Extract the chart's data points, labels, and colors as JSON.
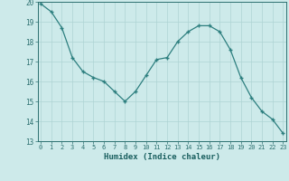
{
  "x": [
    0,
    1,
    2,
    3,
    4,
    5,
    6,
    7,
    8,
    9,
    10,
    11,
    12,
    13,
    14,
    15,
    16,
    17,
    18,
    19,
    20,
    21,
    22,
    23
  ],
  "y": [
    19.9,
    19.5,
    18.7,
    17.2,
    16.5,
    16.2,
    16.0,
    15.5,
    15.0,
    15.5,
    16.3,
    17.1,
    17.2,
    18.0,
    18.5,
    18.8,
    18.8,
    18.5,
    17.6,
    16.2,
    15.2,
    14.5,
    14.1,
    13.4
  ],
  "xlabel": "Humidex (Indice chaleur)",
  "ylim": [
    13,
    20
  ],
  "xlim": [
    -0.3,
    23.3
  ],
  "yticks": [
    13,
    14,
    15,
    16,
    17,
    18,
    19,
    20
  ],
  "xticks": [
    0,
    1,
    2,
    3,
    4,
    5,
    6,
    7,
    8,
    9,
    10,
    11,
    12,
    13,
    14,
    15,
    16,
    17,
    18,
    19,
    20,
    21,
    22,
    23
  ],
  "line_color": "#2d7f7f",
  "marker": "+",
  "bg_color": "#cdeaea",
  "grid_color": "#aed4d4",
  "tick_color": "#2d7070",
  "label_color": "#1a5f5f"
}
